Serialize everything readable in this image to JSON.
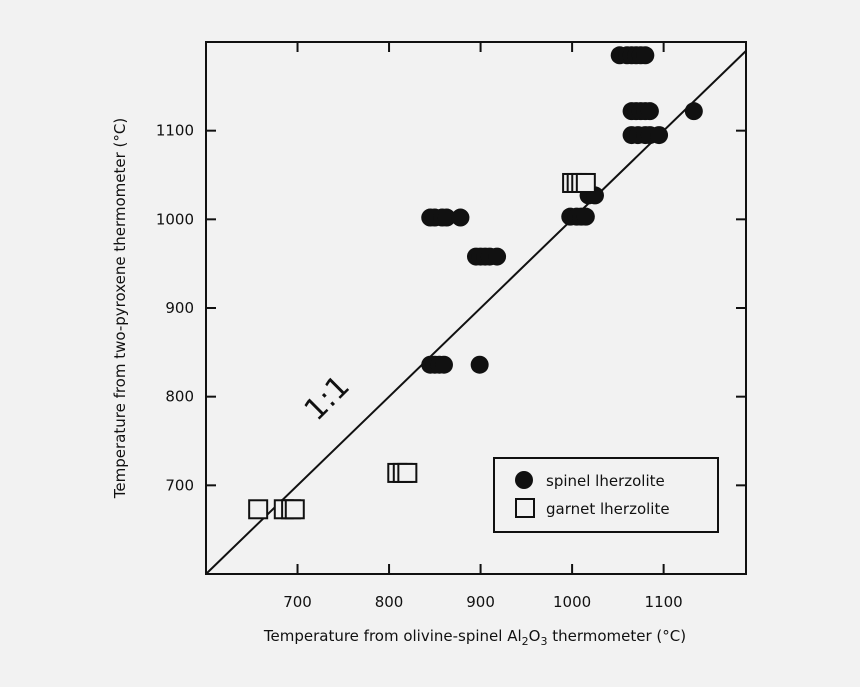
{
  "chart_data": {
    "type": "scatter",
    "title": "",
    "xlabel": {
      "prefix": "Temperature from olivine-spinel Al",
      "sub1": "2",
      "mid": "O",
      "sub2": "3",
      "suffix": " thermometer (°C)"
    },
    "ylabel": "Temperature from two-pyroxene thermometer (°C)",
    "xlim": [
      600,
      1190
    ],
    "ylim": [
      600,
      1200
    ],
    "xticks": [
      {
        "value": 700,
        "label": "700"
      },
      {
        "value": 800,
        "label": "800"
      },
      {
        "value": 900,
        "label": "900"
      },
      {
        "value": 1000,
        "label": "1000"
      },
      {
        "value": 1100,
        "label": "1100"
      }
    ],
    "yticks": [
      {
        "value": 700,
        "label": "700"
      },
      {
        "value": 800,
        "label": "800"
      },
      {
        "value": 900,
        "label": "900"
      },
      {
        "value": 1000,
        "label": "1000"
      },
      {
        "value": 1100,
        "label": "1100"
      }
    ],
    "reference_line": {
      "label": "1:1",
      "from": [
        600,
        600
      ],
      "to": [
        1190,
        1190
      ]
    },
    "legend": {
      "placement": "bottom-right"
    },
    "grid": false,
    "colors": {
      "marker": "#111111",
      "background": "#f2f2f2"
    },
    "series": [
      {
        "name": "spinel lherzolite",
        "marker": "circle",
        "points": [
          [
            1052,
            1185
          ],
          [
            1060,
            1185
          ],
          [
            1065,
            1185
          ],
          [
            1070,
            1185
          ],
          [
            1075,
            1185
          ],
          [
            1080,
            1185
          ],
          [
            1065,
            1122
          ],
          [
            1070,
            1122
          ],
          [
            1075,
            1122
          ],
          [
            1080,
            1122
          ],
          [
            1085,
            1122
          ],
          [
            1133,
            1122
          ],
          [
            1065,
            1095
          ],
          [
            1072,
            1095
          ],
          [
            1080,
            1095
          ],
          [
            1085,
            1095
          ],
          [
            1095,
            1095
          ],
          [
            1018,
            1027
          ],
          [
            1025,
            1027
          ],
          [
            998,
            1003
          ],
          [
            1005,
            1003
          ],
          [
            1010,
            1003
          ],
          [
            1015,
            1003
          ],
          [
            845,
            1002
          ],
          [
            850,
            1002
          ],
          [
            858,
            1002
          ],
          [
            863,
            1002
          ],
          [
            878,
            1002
          ],
          [
            895,
            958
          ],
          [
            900,
            958
          ],
          [
            905,
            958
          ],
          [
            910,
            958
          ],
          [
            918,
            958
          ],
          [
            845,
            836
          ],
          [
            850,
            836
          ],
          [
            855,
            836
          ],
          [
            860,
            836
          ],
          [
            899,
            836
          ]
        ]
      },
      {
        "name": "garnet lherzolite",
        "marker": "square",
        "points": [
          [
            657,
            673
          ],
          [
            685,
            673
          ],
          [
            693,
            673
          ],
          [
            697,
            673
          ],
          [
            809,
            714
          ],
          [
            815,
            714
          ],
          [
            820,
            714
          ],
          [
            1000,
            1041
          ],
          [
            1005,
            1041
          ],
          [
            1010,
            1041
          ],
          [
            1015,
            1041
          ]
        ]
      }
    ]
  }
}
